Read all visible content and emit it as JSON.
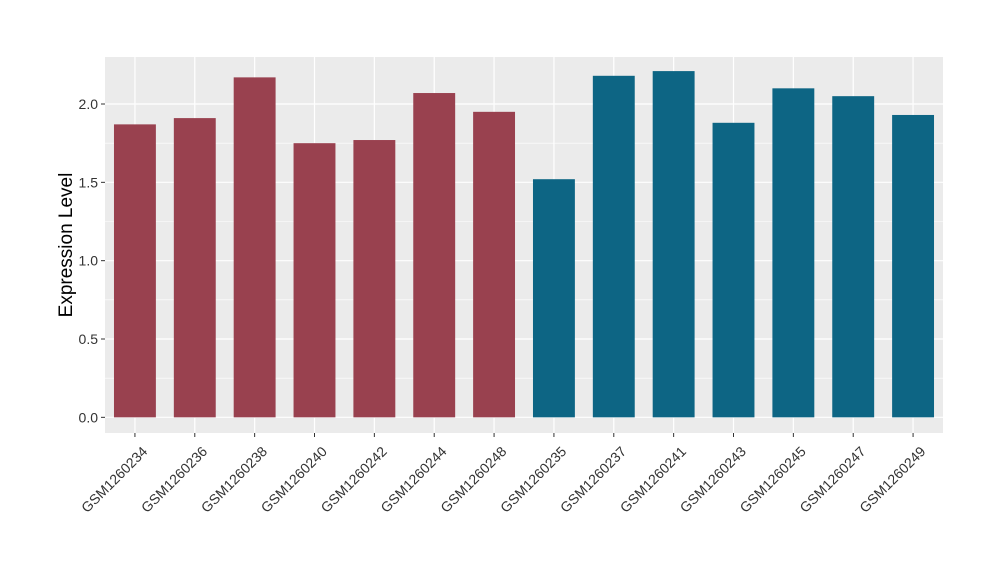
{
  "chart_data": {
    "type": "bar",
    "title": "",
    "xlabel": "",
    "ylabel": "Expression Level",
    "ylim": [
      -0.1,
      2.3
    ],
    "yticks": [
      0.0,
      0.5,
      1.0,
      1.5,
      2.0
    ],
    "ytick_labels": [
      "0.0",
      "0.5",
      "1.0",
      "1.5",
      "2.0"
    ],
    "grid": true,
    "legend": "none",
    "background": "#ebebeb",
    "grid_color": "#ffffff",
    "series_colors": [
      "#99414f",
      "#0d6584"
    ],
    "categories": [
      "GSM1260234",
      "GSM1260236",
      "GSM1260238",
      "GSM1260240",
      "GSM1260242",
      "GSM1260244",
      "GSM1260248",
      "GSM1260235",
      "GSM1260237",
      "GSM1260241",
      "GSM1260243",
      "GSM1260245",
      "GSM1260247",
      "GSM1260249"
    ],
    "values": [
      1.87,
      1.91,
      2.17,
      1.75,
      1.77,
      2.07,
      1.95,
      1.52,
      2.18,
      2.21,
      1.88,
      2.1,
      2.05,
      1.93
    ],
    "groups": [
      0,
      0,
      0,
      0,
      0,
      0,
      0,
      1,
      1,
      1,
      1,
      1,
      1,
      1
    ]
  }
}
